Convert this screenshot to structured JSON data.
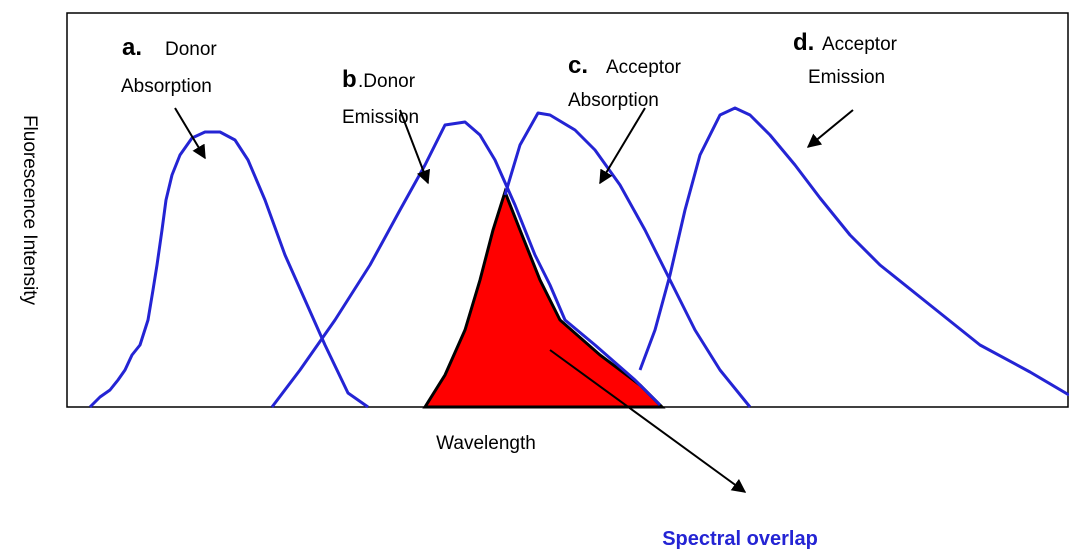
{
  "axes": {
    "x_label": "Wavelength",
    "y_label": "Fluorescence Intensity"
  },
  "curves": [
    {
      "letter": "a.",
      "line1": "Donor",
      "line2": "Absorption"
    },
    {
      "letter": "b",
      "line1": ".Donor",
      "line2": "Emission"
    },
    {
      "letter": "c.",
      "line1": "Acceptor",
      "line2": "Absorption"
    },
    {
      "letter": "d.",
      "line1": "Acceptor",
      "line2": "Emission"
    }
  ],
  "overlap_label": "Spectral overlap"
}
